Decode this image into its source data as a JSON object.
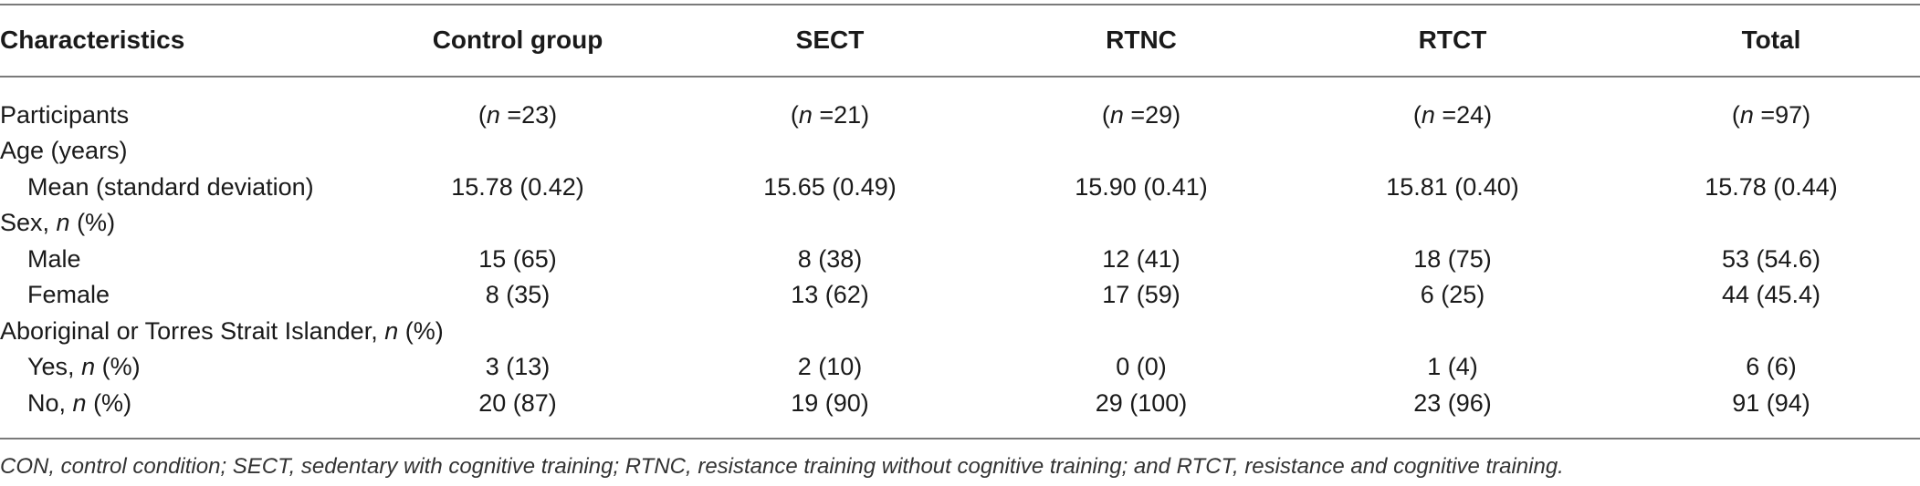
{
  "table": {
    "headers": [
      "Characteristics",
      "Control group",
      "SECT",
      "RTNC",
      "RTCT",
      "Total"
    ],
    "rows": [
      {
        "label": "Participants",
        "n_prefix": "(",
        "n_var": "n",
        "values": [
          "(n = 23)",
          "(n = 21)",
          "(n = 29)",
          "(n = 24)",
          "(n = 97)"
        ],
        "n_values": [
          "23",
          "21",
          "29",
          "24",
          "97"
        ]
      },
      {
        "label": "Age (years)"
      },
      {
        "label": "Mean (standard deviation)",
        "values": [
          "15.78 (0.42)",
          "15.65 (0.49)",
          "15.90 (0.41)",
          "15.81 (0.40)",
          "15.78 (0.44)"
        ]
      },
      {
        "label_pre": "Sex, ",
        "label_var": "n",
        "label_post": " (%)"
      },
      {
        "label": "Male",
        "values": [
          "15 (65)",
          "8 (38)",
          "12 (41)",
          "18 (75)",
          "53 (54.6)"
        ]
      },
      {
        "label": "Female",
        "values": [
          "8 (35)",
          "13 (62)",
          "17 (59)",
          "6 (25)",
          "44 (45.4)"
        ]
      },
      {
        "label_pre": "Aboriginal or Torres Strait Islander, ",
        "label_var": "n",
        "label_post": " (%)"
      },
      {
        "label_pre": "Yes, ",
        "label_var": "n",
        "label_post": " (%)",
        "values": [
          "3 (13)",
          "2 (10)",
          "0 (0)",
          "1 (4)",
          "6 (6)"
        ]
      },
      {
        "label_pre": "No, ",
        "label_var": "n",
        "label_post": " (%)",
        "values": [
          "20 (87)",
          "19 (90)",
          "29 (100)",
          "23 (96)",
          "91 (94)"
        ]
      }
    ]
  },
  "footnote": "CON, control condition; SECT, sedentary with cognitive training; RTNC, resistance training without cognitive training; and RTCT, resistance and cognitive training."
}
